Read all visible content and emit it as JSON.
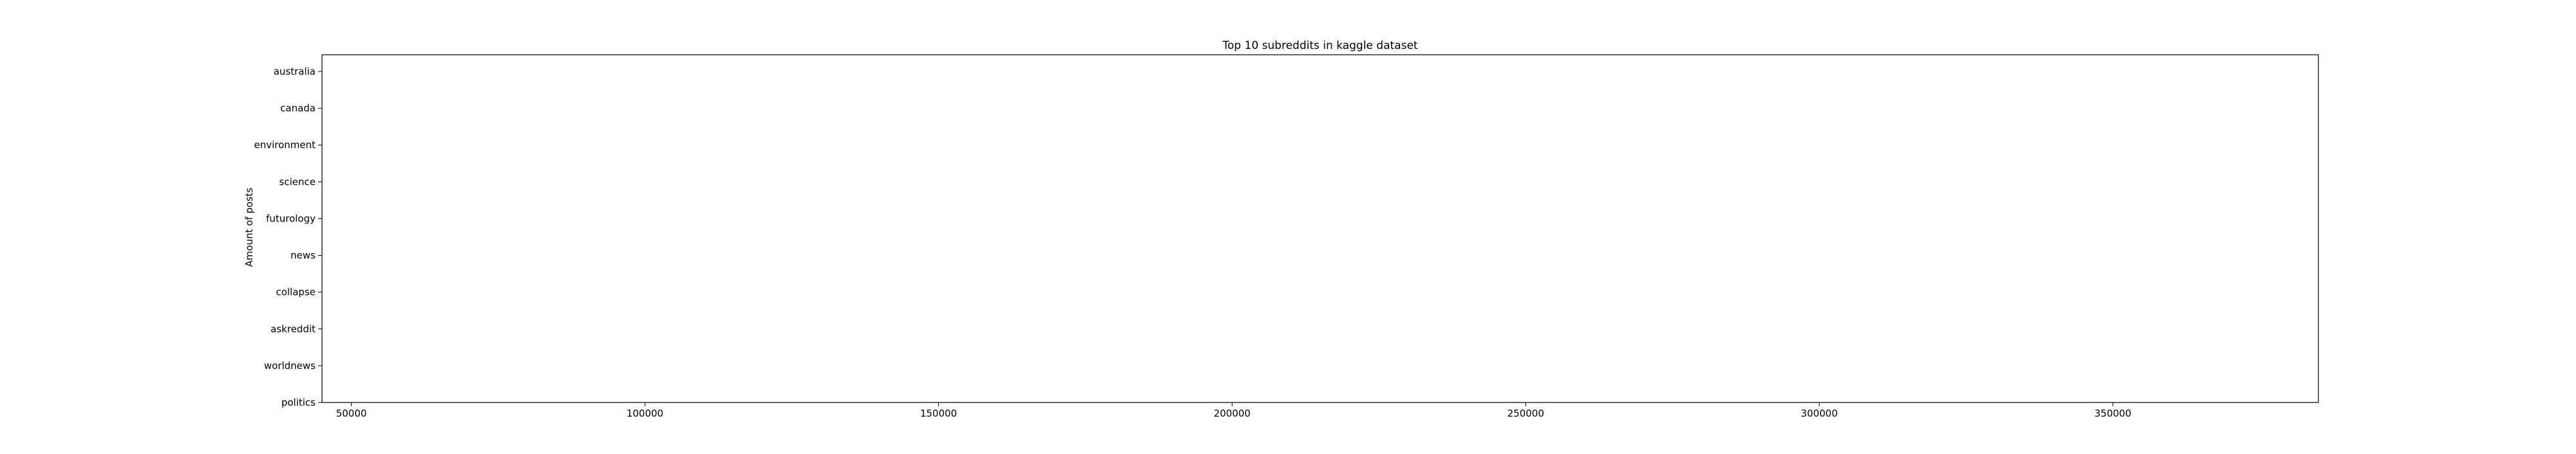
{
  "chart_data": {
    "type": "bar",
    "orientation": "horizontal",
    "title": "Top 10 subreddits in kaggle dataset",
    "xlabel": "",
    "ylabel": "Amount of posts",
    "categories": [
      "australia",
      "canada",
      "environment",
      "science",
      "futurology",
      "news",
      "collapse",
      "askreddit",
      "worldnews",
      "politics"
    ],
    "values": [
      null,
      null,
      null,
      null,
      null,
      null,
      null,
      null,
      null,
      null
    ],
    "xlim": [
      45000,
      385000
    ],
    "xticks": [
      50000,
      100000,
      150000,
      200000,
      250000,
      300000,
      350000
    ],
    "grid": false,
    "legend": null
  }
}
